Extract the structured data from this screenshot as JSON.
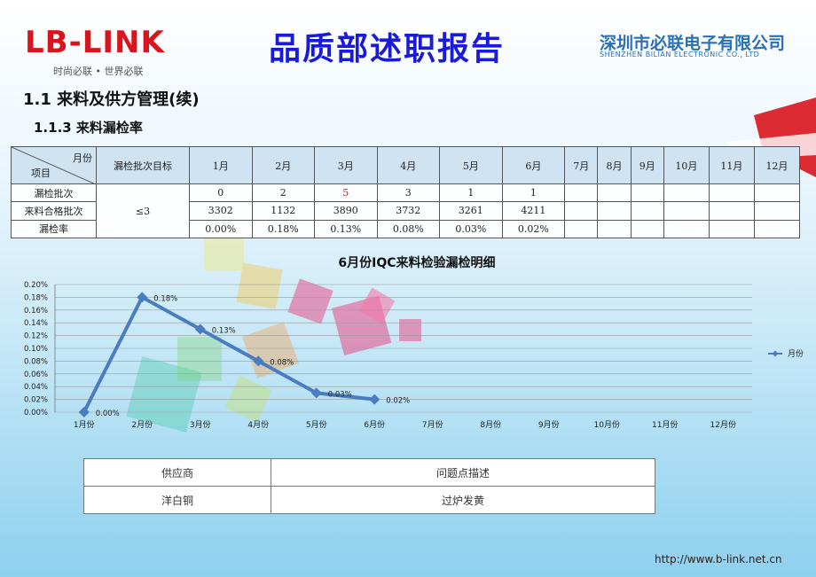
{
  "header": {
    "logo_text": "LB-LINK",
    "logo_tagline": "时尚必联 • 世界必联",
    "title": "品质部述职报告",
    "company_cn": "深圳市必联电子有限公司",
    "company_en": "SHENZHEN BILIAN ELECTRONIC CO., LTD"
  },
  "section": {
    "title": "1.1 来料及供方管理(续)",
    "subtitle": "1.1.3 来料漏检率"
  },
  "stats_table": {
    "corner_month": "月份",
    "corner_item": "项目",
    "target_header": "漏检批次目标",
    "months": [
      "1月",
      "2月",
      "3月",
      "4月",
      "5月",
      "6月",
      "7月",
      "8月",
      "9月",
      "10月",
      "11月",
      "12月"
    ],
    "target_value": "≤3",
    "rows": [
      {
        "label": "漏检批次",
        "values": [
          "0",
          "2",
          "5",
          "3",
          "1",
          "1",
          "",
          "",
          "",
          "",
          "",
          ""
        ]
      },
      {
        "label": "来料合格批次",
        "values": [
          "3302",
          "1132",
          "3890",
          "3732",
          "3261",
          "4211",
          "",
          "",
          "",
          "",
          "",
          ""
        ]
      },
      {
        "label": "漏检率",
        "values": [
          "0.00%",
          "0.18%",
          "0.13%",
          "0.08%",
          "0.03%",
          "0.02%",
          "",
          "",
          "",
          "",
          "",
          ""
        ]
      }
    ],
    "highlight_color": "#d42020"
  },
  "chart_data": {
    "type": "line",
    "title": "6月份IQC来料检验漏检明细",
    "categories": [
      "1月份",
      "2月份",
      "3月份",
      "4月份",
      "5月份",
      "6月份",
      "7月份",
      "8月份",
      "9月份",
      "10月份",
      "11月份",
      "12月份"
    ],
    "series": [
      {
        "name": "月份",
        "values": [
          0.0,
          0.18,
          0.13,
          0.08,
          0.03,
          0.02,
          null,
          null,
          null,
          null,
          null,
          null
        ],
        "labels": [
          "0.00%",
          "0.18%",
          "0.13%",
          "0.08%",
          "0.03%",
          "0.02%"
        ],
        "color": "#4a7cc0"
      }
    ],
    "y_ticks": [
      "0.00%",
      "0.02%",
      "0.04%",
      "0.06%",
      "0.08%",
      "0.10%",
      "0.12%",
      "0.14%",
      "0.16%",
      "0.18%",
      "0.20%"
    ],
    "ylim": [
      0,
      0.2
    ],
    "grid": true,
    "legend_position": "right"
  },
  "issue_table": {
    "headers": [
      "供应商",
      "问题点描述"
    ],
    "rows": [
      [
        "洋白铜",
        "过炉发黄"
      ]
    ]
  },
  "footer": {
    "url": "http://www.b-link.net.cn"
  }
}
